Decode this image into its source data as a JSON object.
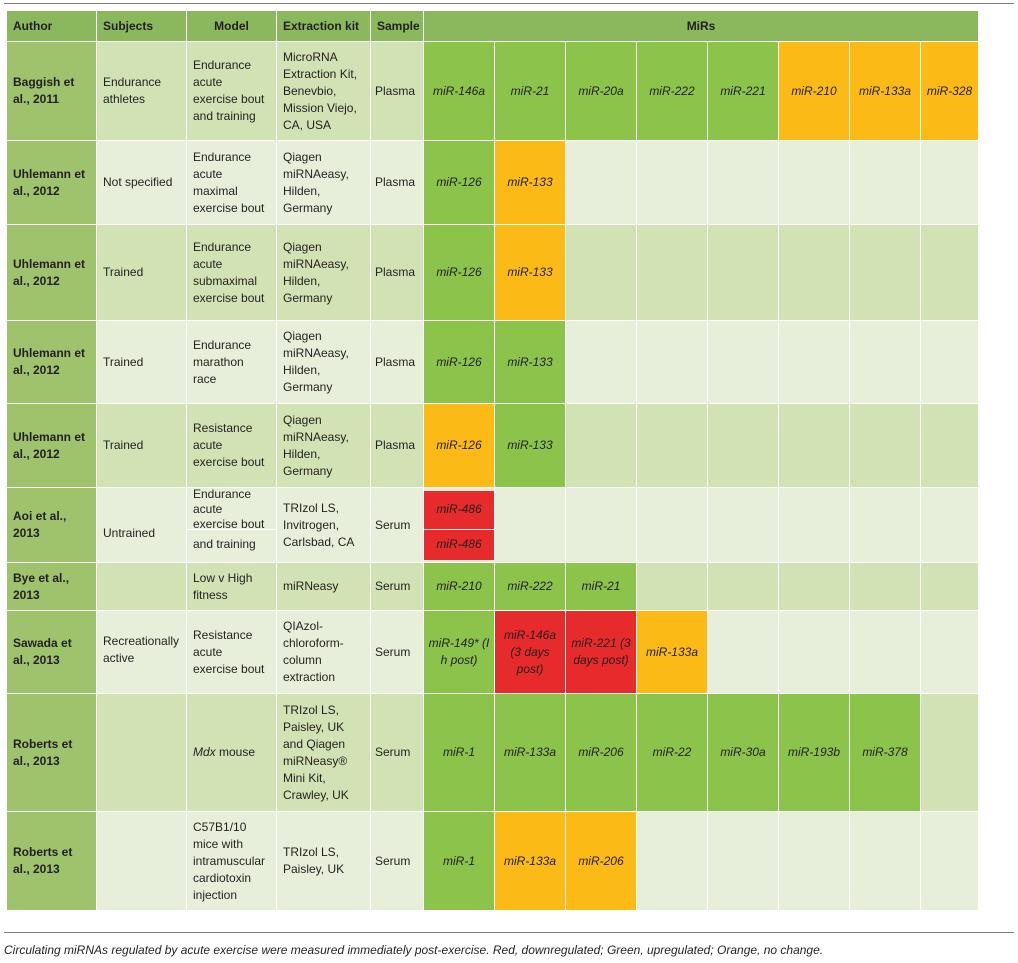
{
  "header": {
    "author": "Author",
    "subjects": "Subjects",
    "model": "Model",
    "kit": "Extraction kit",
    "sample": "Sample",
    "mirs": "MiRs"
  },
  "rows": [
    {
      "author": "Baggish et al., 2011",
      "subjects": "Endurance athletes",
      "model": "Endurance acute exercise bout and training",
      "kit": "MicroRNA Extraction Kit, Benevbio, Mission Viejo, CA, USA",
      "sample": "Plasma",
      "mirs": [
        "miR-146a",
        "miR-21",
        "miR-20a",
        "miR-222",
        "miR-221",
        "miR-210",
        "miR-133a",
        "miR-328"
      ]
    },
    {
      "author": "Uhlemann et al., 2012",
      "subjects": "Not specified",
      "model": "Endurance acute maximal exercise bout",
      "kit": "Qiagen miRNAeasy, Hilden, Germany",
      "sample": "Plasma",
      "mirs": [
        "miR-126",
        "miR-133"
      ]
    },
    {
      "author": "Uhlemann et al., 2012",
      "subjects": "Trained",
      "model": "Endurance acute submaximal exercise bout",
      "kit": "Qiagen miRNAeasy, Hilden, Germany",
      "sample": "Plasma",
      "mirs": [
        "miR-126",
        "miR-133"
      ]
    },
    {
      "author": "Uhlemann et al., 2012",
      "subjects": "Trained",
      "model": "Endurance marathon race",
      "kit": "Qiagen miRNAeasy, Hilden, Germany",
      "sample": "Plasma",
      "mirs": [
        "miR-126",
        "miR-133"
      ]
    },
    {
      "author": "Uhlemann et al., 2012",
      "subjects": "Trained",
      "model": "Resistance acute exercise bout",
      "kit": "Qiagen miRNAeasy, Hilden, Germany",
      "sample": "Plasma",
      "mirs": [
        "miR-126",
        "miR-133"
      ]
    },
    {
      "author": "Aoi et al., 2013",
      "subjects": "Untrained",
      "model_top": "Endurance acute exercise bout",
      "model_bottom": "and training",
      "kit": "TRIzol LS, Invitrogen, Carlsbad, CA",
      "sample": "Serum",
      "mirs": [
        "miR-486",
        "miR-486"
      ]
    },
    {
      "author": "Bye et al., 2013",
      "subjects": "",
      "model": "Low v High fitness",
      "kit": "miRNeasy",
      "sample": "Serum",
      "mirs": [
        "miR-210",
        "miR-222",
        "miR-21"
      ]
    },
    {
      "author": "Sawada et al., 2013",
      "subjects": "Recreationally active",
      "model": "Resistance acute exercise bout",
      "kit": "QIAzol-chloroform-column extraction",
      "sample": "Serum",
      "mirs": [
        "miR-149* (I h post)",
        "miR-146a (3 days post)",
        "miR-221 (3 days post)",
        "miR-133a"
      ]
    },
    {
      "author": "Roberts et al., 2013",
      "subjects": "",
      "model": "Mdx mouse",
      "model_mouse": "mouse",
      "model_italic": "Mdx",
      "kit": "TRIzol LS, Paisley, UK and Qiagen miRNeasy® Mini Kit, Crawley, UK",
      "sample": "Serum",
      "mirs": [
        "miR-1",
        "miR-133a",
        "miR-206",
        "miR-22",
        "miR-30a",
        "miR-193b",
        "miR-378"
      ]
    },
    {
      "author": "Roberts et al., 2013",
      "subjects": "",
      "model": "C57B1/10 mice with intramuscular cardiotoxin injection",
      "kit": "TRIzol LS, Paisley, UK",
      "sample": "Serum",
      "mirs": [
        "miR-1",
        "miR-133a",
        "miR-206"
      ]
    }
  ],
  "caption": "Circulating miRNAs regulated by acute exercise were measured immediately post-exercise. Red, downregulated; Green, upregulated; Orange, no change.",
  "colors": {
    "header": "#8cb85d",
    "up_green": "#8cc34a",
    "down_red": "#e72a2b",
    "no_change_orange": "#fbba16",
    "row_light": "#e7efda",
    "row_dark": "#d1e2b4"
  }
}
